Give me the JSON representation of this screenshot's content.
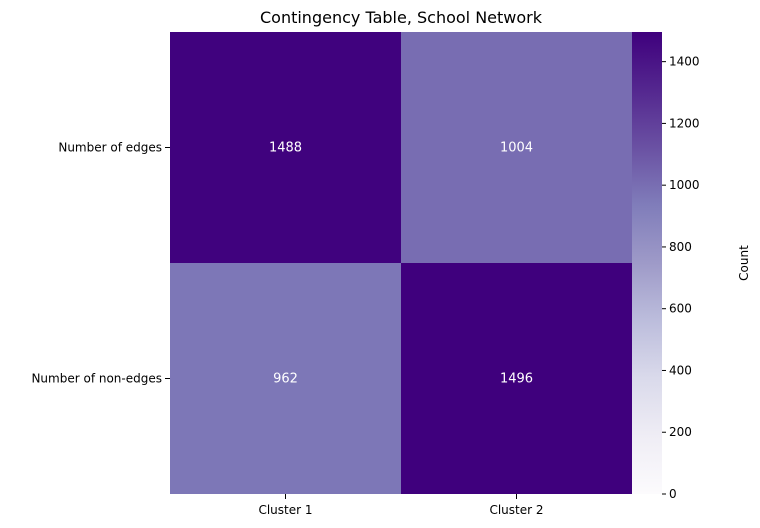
{
  "chart_data": {
    "type": "heatmap",
    "title": "Contingency Table, School Network",
    "rows": [
      "Number of edges",
      "Number of non-edges"
    ],
    "columns": [
      "Cluster 1",
      "Cluster 2"
    ],
    "values": [
      [
        1488,
        1004
      ],
      [
        962,
        1496
      ]
    ],
    "colorbar": {
      "label": "Count",
      "range": [
        0,
        1496
      ],
      "ticks": [
        "0",
        "200",
        "400",
        "600",
        "800",
        "1000",
        "1200",
        "1400"
      ],
      "colormap": "Purples",
      "low_color": "#fcfbfd",
      "high_color": "#3f007d"
    },
    "cell_text_color": "#ffffff"
  }
}
